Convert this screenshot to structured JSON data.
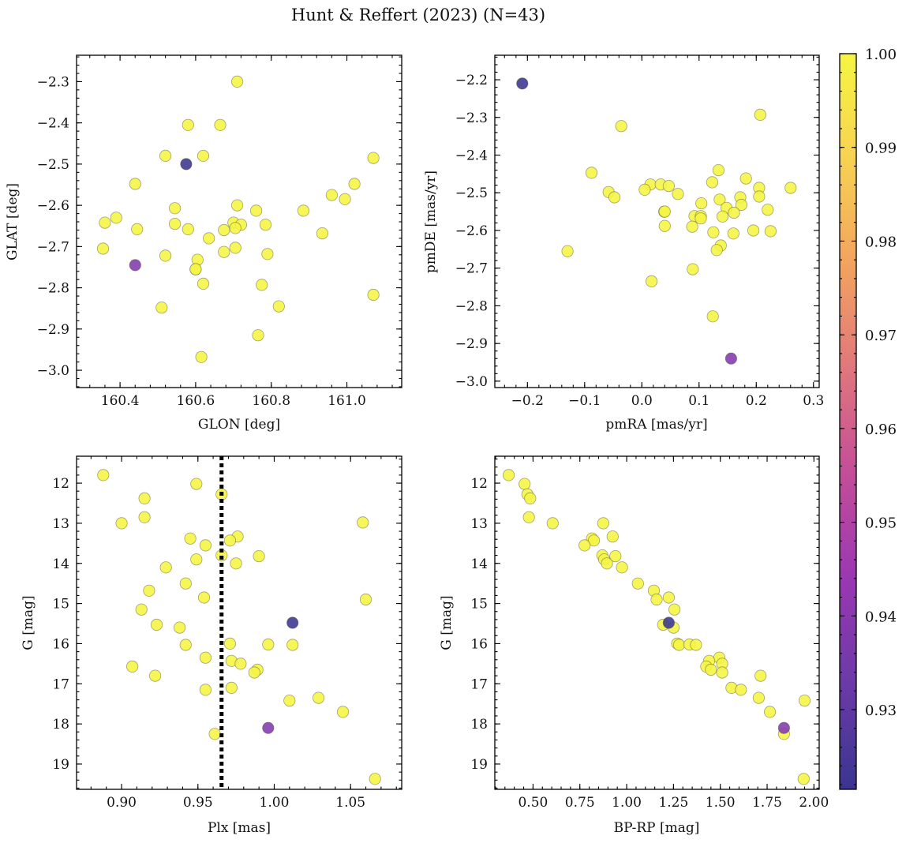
{
  "figure": {
    "title": "Hunt & Reffert (2023) (N=43)"
  },
  "colorbar": {
    "min": 0.9215,
    "max": 1.0,
    "ticks": [
      0.93,
      0.94,
      0.95,
      0.96,
      0.97,
      0.98,
      0.99,
      1.0
    ],
    "tick_labels": [
      "0.93",
      "0.94",
      "0.95",
      "0.96",
      "0.97",
      "0.98",
      "0.99",
      "1.00"
    ],
    "colormap": "plasma",
    "colors": [
      "#3a3590",
      "#6b3aa8",
      "#9b37b3",
      "#c34d99",
      "#e0767d",
      "#f3a35e",
      "#f7d252",
      "#f5f542"
    ]
  },
  "chart_data": [
    {
      "type": "scatter",
      "id": "glon-glat",
      "xlabel": "GLON [deg]",
      "ylabel": "GLAT [deg]",
      "xlim": [
        160.285,
        161.145
      ],
      "ylim": [
        -3.042,
        -2.236
      ],
      "y_inverted": false,
      "x_ticks": [
        160.4,
        160.6,
        160.8,
        161.0
      ],
      "x_tick_labels": [
        "160.4",
        "160.6",
        "160.8",
        "161.0"
      ],
      "y_ticks": [
        -3.0,
        -2.9,
        -2.8,
        -2.7,
        -2.6,
        -2.5,
        -2.4,
        -2.3
      ],
      "y_tick_labels": [
        "−3.0",
        "−2.9",
        "−2.8",
        "−2.7",
        "−2.6",
        "−2.5",
        "−2.4",
        "−2.3"
      ],
      "x_minor_step": 0.04,
      "y_minor_step": 0.02,
      "points": [
        {
          "x": 160.71,
          "y": -2.3,
          "c": 1.0
        },
        {
          "x": 160.58,
          "y": -2.405,
          "c": 1.0
        },
        {
          "x": 160.665,
          "y": -2.405,
          "c": 1.0
        },
        {
          "x": 160.52,
          "y": -2.48,
          "c": 1.0
        },
        {
          "x": 160.62,
          "y": -2.48,
          "c": 1.0
        },
        {
          "x": 161.07,
          "y": -2.485,
          "c": 1.0
        },
        {
          "x": 160.44,
          "y": -2.548,
          "c": 1.0
        },
        {
          "x": 161.02,
          "y": -2.548,
          "c": 1.0
        },
        {
          "x": 160.96,
          "y": -2.575,
          "c": 1.0
        },
        {
          "x": 160.995,
          "y": -2.585,
          "c": 1.0
        },
        {
          "x": 160.71,
          "y": -2.6,
          "c": 1.0
        },
        {
          "x": 160.545,
          "y": -2.607,
          "c": 1.0
        },
        {
          "x": 160.76,
          "y": -2.613,
          "c": 1.0
        },
        {
          "x": 160.885,
          "y": -2.613,
          "c": 1.0
        },
        {
          "x": 160.39,
          "y": -2.63,
          "c": 1.0
        },
        {
          "x": 160.36,
          "y": -2.642,
          "c": 1.0
        },
        {
          "x": 160.7,
          "y": -2.642,
          "c": 1.0
        },
        {
          "x": 160.545,
          "y": -2.645,
          "c": 1.0
        },
        {
          "x": 160.72,
          "y": -2.647,
          "c": 1.0
        },
        {
          "x": 160.785,
          "y": -2.647,
          "c": 1.0
        },
        {
          "x": 160.445,
          "y": -2.658,
          "c": 1.0
        },
        {
          "x": 160.58,
          "y": -2.658,
          "c": 1.0
        },
        {
          "x": 160.705,
          "y": -2.655,
          "c": 1.0
        },
        {
          "x": 160.675,
          "y": -2.66,
          "c": 1.0
        },
        {
          "x": 160.935,
          "y": -2.668,
          "c": 1.0
        },
        {
          "x": 160.635,
          "y": -2.68,
          "c": 1.0
        },
        {
          "x": 160.355,
          "y": -2.705,
          "c": 1.0
        },
        {
          "x": 160.705,
          "y": -2.703,
          "c": 1.0
        },
        {
          "x": 160.675,
          "y": -2.713,
          "c": 1.0
        },
        {
          "x": 160.79,
          "y": -2.718,
          "c": 1.0
        },
        {
          "x": 160.52,
          "y": -2.722,
          "c": 1.0
        },
        {
          "x": 160.605,
          "y": -2.732,
          "c": 1.0
        },
        {
          "x": 160.6,
          "y": -2.755,
          "c": 1.0
        },
        {
          "x": 160.62,
          "y": -2.79,
          "c": 1.0
        },
        {
          "x": 160.775,
          "y": -2.793,
          "c": 1.0
        },
        {
          "x": 161.07,
          "y": -2.817,
          "c": 1.0
        },
        {
          "x": 160.82,
          "y": -2.845,
          "c": 1.0
        },
        {
          "x": 160.51,
          "y": -2.848,
          "c": 1.0
        },
        {
          "x": 160.765,
          "y": -2.915,
          "c": 1.0
        },
        {
          "x": 160.615,
          "y": -2.968,
          "c": 1.0
        },
        {
          "x": 160.6,
          "y": -2.755,
          "c": 1.0
        },
        {
          "x": 160.44,
          "y": -2.745,
          "c": 0.938
        },
        {
          "x": 160.575,
          "y": -2.5,
          "c": 0.9215
        }
      ]
    },
    {
      "type": "scatter",
      "id": "pmra-pmde",
      "xlabel": "pmRA [mas/yr]",
      "ylabel": "pmDE [mas/yr]",
      "xlim": [
        -0.257,
        0.31
      ],
      "ylim": [
        -3.017,
        -2.135
      ],
      "y_inverted": false,
      "x_ticks": [
        -0.2,
        -0.1,
        0.0,
        0.1,
        0.2,
        0.3
      ],
      "x_tick_labels": [
        "−0.2",
        "−0.1",
        "0.0",
        "0.1",
        "0.2",
        "0.3"
      ],
      "y_ticks": [
        -3.0,
        -2.9,
        -2.8,
        -2.7,
        -2.6,
        -2.5,
        -2.4,
        -2.3,
        -2.2
      ],
      "y_tick_labels": [
        "−3.0",
        "−2.9",
        "−2.8",
        "−2.7",
        "−2.6",
        "−2.5",
        "−2.4",
        "−2.3",
        "−2.2"
      ],
      "x_minor_step": 0.02,
      "y_minor_step": 0.02,
      "points": [
        {
          "x": -0.036,
          "y": -2.323,
          "c": 1.0
        },
        {
          "x": 0.207,
          "y": -2.293,
          "c": 1.0
        },
        {
          "x": 0.134,
          "y": -2.44,
          "c": 1.0
        },
        {
          "x": -0.088,
          "y": -2.447,
          "c": 1.0
        },
        {
          "x": 0.182,
          "y": -2.462,
          "c": 1.0
        },
        {
          "x": 0.123,
          "y": -2.472,
          "c": 1.0
        },
        {
          "x": 0.015,
          "y": -2.478,
          "c": 1.0
        },
        {
          "x": 0.033,
          "y": -2.478,
          "c": 1.0
        },
        {
          "x": 0.047,
          "y": -2.482,
          "c": 1.0
        },
        {
          "x": 0.205,
          "y": -2.487,
          "c": 1.0
        },
        {
          "x": 0.26,
          "y": -2.487,
          "c": 1.0
        },
        {
          "x": 0.005,
          "y": -2.492,
          "c": 1.0
        },
        {
          "x": -0.058,
          "y": -2.498,
          "c": 1.0
        },
        {
          "x": 0.063,
          "y": -2.503,
          "c": 1.0
        },
        {
          "x": 0.205,
          "y": -2.51,
          "c": 1.0
        },
        {
          "x": 0.172,
          "y": -2.512,
          "c": 1.0
        },
        {
          "x": -0.048,
          "y": -2.512,
          "c": 1.0
        },
        {
          "x": 0.136,
          "y": -2.518,
          "c": 1.0
        },
        {
          "x": 0.104,
          "y": -2.528,
          "c": 1.0
        },
        {
          "x": 0.174,
          "y": -2.532,
          "c": 1.0
        },
        {
          "x": 0.148,
          "y": -2.54,
          "c": 1.0
        },
        {
          "x": 0.22,
          "y": -2.545,
          "c": 1.0
        },
        {
          "x": 0.039,
          "y": -2.55,
          "c": 1.0
        },
        {
          "x": 0.161,
          "y": -2.553,
          "c": 1.0
        },
        {
          "x": 0.092,
          "y": -2.562,
          "c": 1.0
        },
        {
          "x": 0.103,
          "y": -2.562,
          "c": 1.0
        },
        {
          "x": 0.141,
          "y": -2.563,
          "c": 1.0
        },
        {
          "x": 0.103,
          "y": -2.568,
          "c": 1.0
        },
        {
          "x": 0.04,
          "y": -2.588,
          "c": 1.0
        },
        {
          "x": 0.088,
          "y": -2.59,
          "c": 1.0
        },
        {
          "x": 0.195,
          "y": -2.6,
          "c": 1.0
        },
        {
          "x": 0.225,
          "y": -2.602,
          "c": 1.0
        },
        {
          "x": 0.125,
          "y": -2.605,
          "c": 1.0
        },
        {
          "x": 0.16,
          "y": -2.608,
          "c": 1.0
        },
        {
          "x": 0.138,
          "y": -2.64,
          "c": 1.0
        },
        {
          "x": 0.131,
          "y": -2.652,
          "c": 1.0
        },
        {
          "x": -0.13,
          "y": -2.655,
          "c": 1.0
        },
        {
          "x": 0.089,
          "y": -2.703,
          "c": 1.0
        },
        {
          "x": 0.017,
          "y": -2.735,
          "c": 1.0
        },
        {
          "x": 0.124,
          "y": -2.828,
          "c": 1.0
        },
        {
          "x": 0.04,
          "y": -2.55,
          "c": 1.0
        },
        {
          "x": 0.156,
          "y": -2.94,
          "c": 0.938
        },
        {
          "x": -0.209,
          "y": -2.21,
          "c": 0.9215
        }
      ]
    },
    {
      "type": "scatter",
      "id": "plx-g",
      "xlabel": "Plx [mas]",
      "ylabel": "G [mag]",
      "xlim": [
        0.8705,
        1.0835
      ],
      "ylim": [
        19.63,
        11.33
      ],
      "y_inverted": true,
      "x_ticks": [
        0.9,
        0.95,
        1.0,
        1.05
      ],
      "x_tick_labels": [
        "0.90",
        "0.95",
        "1.00",
        "1.05"
      ],
      "y_ticks": [
        12,
        13,
        14,
        15,
        16,
        17,
        18,
        19
      ],
      "y_tick_labels": [
        "12",
        "13",
        "14",
        "15",
        "16",
        "17",
        "18",
        "19"
      ],
      "x_minor_step": 0.01,
      "y_minor_step": 0.2,
      "vline": {
        "x": 0.9655,
        "style": "dotted"
      },
      "points": [
        {
          "x": 0.888,
          "y": 11.8,
          "c": 1.0
        },
        {
          "x": 0.949,
          "y": 12.02,
          "c": 1.0
        },
        {
          "x": 0.9655,
          "y": 12.28,
          "c": 1.0
        },
        {
          "x": 0.915,
          "y": 12.38,
          "c": 1.0
        },
        {
          "x": 0.915,
          "y": 12.85,
          "c": 1.0
        },
        {
          "x": 0.9,
          "y": 13.0,
          "c": 1.0
        },
        {
          "x": 1.058,
          "y": 12.98,
          "c": 1.0
        },
        {
          "x": 0.976,
          "y": 13.33,
          "c": 1.0
        },
        {
          "x": 0.945,
          "y": 13.38,
          "c": 1.0
        },
        {
          "x": 0.971,
          "y": 13.43,
          "c": 1.0
        },
        {
          "x": 0.955,
          "y": 13.55,
          "c": 1.0
        },
        {
          "x": 0.9655,
          "y": 13.8,
          "c": 1.0
        },
        {
          "x": 0.99,
          "y": 13.82,
          "c": 1.0
        },
        {
          "x": 0.949,
          "y": 13.9,
          "c": 1.0
        },
        {
          "x": 0.975,
          "y": 14.0,
          "c": 1.0
        },
        {
          "x": 0.929,
          "y": 14.1,
          "c": 1.0
        },
        {
          "x": 0.942,
          "y": 14.5,
          "c": 1.0
        },
        {
          "x": 0.918,
          "y": 14.68,
          "c": 1.0
        },
        {
          "x": 0.954,
          "y": 14.85,
          "c": 1.0
        },
        {
          "x": 1.06,
          "y": 14.9,
          "c": 1.0
        },
        {
          "x": 0.913,
          "y": 15.15,
          "c": 1.0
        },
        {
          "x": 0.923,
          "y": 15.53,
          "c": 1.0
        },
        {
          "x": 0.938,
          "y": 15.6,
          "c": 1.0
        },
        {
          "x": 0.971,
          "y": 16.0,
          "c": 1.0
        },
        {
          "x": 0.942,
          "y": 16.03,
          "c": 1.0
        },
        {
          "x": 0.996,
          "y": 16.02,
          "c": 1.0
        },
        {
          "x": 1.012,
          "y": 16.03,
          "c": 1.0
        },
        {
          "x": 0.955,
          "y": 16.35,
          "c": 1.0
        },
        {
          "x": 0.972,
          "y": 16.43,
          "c": 1.0
        },
        {
          "x": 0.978,
          "y": 16.5,
          "c": 1.0
        },
        {
          "x": 0.907,
          "y": 16.57,
          "c": 1.0
        },
        {
          "x": 0.989,
          "y": 16.65,
          "c": 1.0
        },
        {
          "x": 0.987,
          "y": 16.72,
          "c": 1.0
        },
        {
          "x": 0.922,
          "y": 16.8,
          "c": 1.0
        },
        {
          "x": 0.972,
          "y": 17.1,
          "c": 1.0
        },
        {
          "x": 0.955,
          "y": 17.15,
          "c": 1.0
        },
        {
          "x": 1.029,
          "y": 17.35,
          "c": 1.0
        },
        {
          "x": 1.01,
          "y": 17.42,
          "c": 1.0
        },
        {
          "x": 1.045,
          "y": 17.7,
          "c": 1.0
        },
        {
          "x": 0.961,
          "y": 18.25,
          "c": 1.0
        },
        {
          "x": 1.066,
          "y": 19.37,
          "c": 1.0
        },
        {
          "x": 0.996,
          "y": 18.1,
          "c": 0.938
        },
        {
          "x": 1.012,
          "y": 15.48,
          "c": 0.9215
        }
      ]
    },
    {
      "type": "scatter",
      "id": "bprp-g",
      "xlabel": "BP-RP [mag]",
      "ylabel": "G [mag]",
      "xlim": [
        0.296,
        2.028
      ],
      "ylim": [
        19.63,
        11.33
      ],
      "y_inverted": true,
      "x_ticks": [
        0.5,
        0.75,
        1.0,
        1.25,
        1.5,
        1.75,
        2.0
      ],
      "x_tick_labels": [
        "0.50",
        "0.75",
        "1.00",
        "1.25",
        "1.50",
        "1.75",
        "2.00"
      ],
      "y_ticks": [
        12,
        13,
        14,
        15,
        16,
        17,
        18,
        19
      ],
      "y_tick_labels": [
        "12",
        "13",
        "14",
        "15",
        "16",
        "17",
        "18",
        "19"
      ],
      "x_minor_step": 0.05,
      "y_minor_step": 0.2,
      "points": [
        {
          "x": 0.37,
          "y": 11.8,
          "c": 1.0
        },
        {
          "x": 0.455,
          "y": 12.02,
          "c": 1.0
        },
        {
          "x": 0.47,
          "y": 12.28,
          "c": 1.0
        },
        {
          "x": 0.485,
          "y": 12.38,
          "c": 1.0
        },
        {
          "x": 0.478,
          "y": 12.85,
          "c": 1.0
        },
        {
          "x": 0.605,
          "y": 13.0,
          "c": 1.0
        },
        {
          "x": 0.875,
          "y": 13.0,
          "c": 1.0
        },
        {
          "x": 0.925,
          "y": 13.33,
          "c": 1.0
        },
        {
          "x": 0.815,
          "y": 13.38,
          "c": 1.0
        },
        {
          "x": 0.825,
          "y": 13.43,
          "c": 1.0
        },
        {
          "x": 0.775,
          "y": 13.55,
          "c": 1.0
        },
        {
          "x": 0.87,
          "y": 13.8,
          "c": 1.0
        },
        {
          "x": 0.94,
          "y": 13.82,
          "c": 1.0
        },
        {
          "x": 0.88,
          "y": 13.9,
          "c": 1.0
        },
        {
          "x": 0.895,
          "y": 14.0,
          "c": 1.0
        },
        {
          "x": 0.975,
          "y": 14.1,
          "c": 1.0
        },
        {
          "x": 1.06,
          "y": 14.5,
          "c": 1.0
        },
        {
          "x": 1.145,
          "y": 14.68,
          "c": 1.0
        },
        {
          "x": 1.225,
          "y": 14.85,
          "c": 1.0
        },
        {
          "x": 1.16,
          "y": 14.9,
          "c": 1.0
        },
        {
          "x": 1.255,
          "y": 15.15,
          "c": 1.0
        },
        {
          "x": 1.195,
          "y": 15.53,
          "c": 1.0
        },
        {
          "x": 1.25,
          "y": 15.6,
          "c": 1.0
        },
        {
          "x": 1.27,
          "y": 16.0,
          "c": 1.0
        },
        {
          "x": 1.28,
          "y": 16.03,
          "c": 1.0
        },
        {
          "x": 1.335,
          "y": 16.02,
          "c": 1.0
        },
        {
          "x": 1.37,
          "y": 16.03,
          "c": 1.0
        },
        {
          "x": 1.495,
          "y": 16.35,
          "c": 1.0
        },
        {
          "x": 1.44,
          "y": 16.43,
          "c": 1.0
        },
        {
          "x": 1.51,
          "y": 16.5,
          "c": 1.0
        },
        {
          "x": 1.425,
          "y": 16.57,
          "c": 1.0
        },
        {
          "x": 1.45,
          "y": 16.65,
          "c": 1.0
        },
        {
          "x": 1.51,
          "y": 16.72,
          "c": 1.0
        },
        {
          "x": 1.715,
          "y": 16.8,
          "c": 1.0
        },
        {
          "x": 1.56,
          "y": 17.1,
          "c": 1.0
        },
        {
          "x": 1.61,
          "y": 17.15,
          "c": 1.0
        },
        {
          "x": 1.705,
          "y": 17.35,
          "c": 1.0
        },
        {
          "x": 1.95,
          "y": 17.42,
          "c": 1.0
        },
        {
          "x": 1.765,
          "y": 17.7,
          "c": 1.0
        },
        {
          "x": 1.84,
          "y": 18.25,
          "c": 1.0
        },
        {
          "x": 1.945,
          "y": 19.37,
          "c": 1.0
        },
        {
          "x": 1.84,
          "y": 18.1,
          "c": 0.938
        },
        {
          "x": 1.225,
          "y": 15.48,
          "c": 0.9215
        }
      ]
    }
  ]
}
